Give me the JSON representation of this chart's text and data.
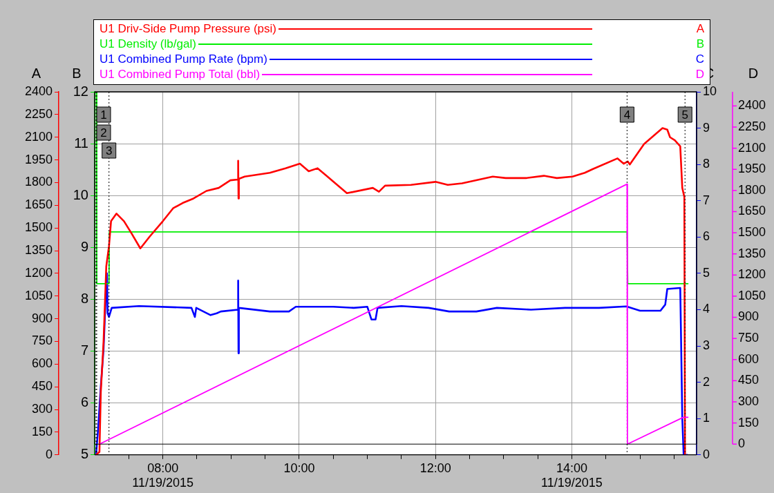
{
  "chart_data": [
    {
      "type": "line",
      "legend": "top",
      "grid": true,
      "xlim": [
        7.0,
        15.83
      ],
      "xticks": [
        {
          "value": 7.5,
          "label": null
        },
        {
          "value": 8,
          "label": "08:00\n11/19/2015"
        },
        {
          "value": 8.5,
          "label": null
        },
        {
          "value": 9,
          "label": null
        },
        {
          "value": 9.5,
          "label": null
        },
        {
          "value": 10,
          "label": "10:00"
        },
        {
          "value": 10.5,
          "label": null
        },
        {
          "value": 11,
          "label": null
        },
        {
          "value": 11.5,
          "label": null
        },
        {
          "value": 12,
          "label": "12:00"
        },
        {
          "value": 12.5,
          "label": null
        },
        {
          "value": 13,
          "label": null
        },
        {
          "value": 13.5,
          "label": null
        },
        {
          "value": 14,
          "label": "14:00\n11/19/2015"
        },
        {
          "value": 14.5,
          "label": null
        },
        {
          "value": 15,
          "label": null
        },
        {
          "value": 15.5,
          "label": null
        }
      ],
      "ylabel": "A",
      "ylim": [
        0,
        2400
      ],
      "yticks": [
        0,
        150,
        300,
        450,
        600,
        750,
        900,
        1050,
        1200,
        1350,
        1500,
        1650,
        1800,
        1950,
        2100,
        2250,
        2400
      ],
      "y2label": "B",
      "y2lim": [
        5,
        12
      ],
      "y2ticks": [
        5,
        6,
        7,
        8,
        9,
        10,
        11,
        12
      ],
      "y3label": "C",
      "y3lim": [
        0,
        10
      ],
      "y3ticks": [
        0,
        1,
        2,
        3,
        4,
        5,
        6,
        7,
        8,
        9,
        10
      ],
      "ref_lines": [
        {
          "axis": "x",
          "value": 7.02,
          "color": "#000000",
          "line_style": "dotted"
        },
        {
          "axis": "x",
          "value": 7.03,
          "color": "#000000",
          "line_style": "dotted"
        },
        {
          "axis": "x",
          "value": 7.21,
          "color": "#000000",
          "line_style": "dotted"
        },
        {
          "axis": "x",
          "value": 14.81,
          "color": "#000000",
          "line_style": "dotted"
        },
        {
          "axis": "x",
          "value": 15.66,
          "color": "#000000",
          "line_style": "dotted"
        }
      ],
      "annotations": [
        {
          "text": "1",
          "x": 7.02
        },
        {
          "text": "2",
          "x": 7.03
        },
        {
          "text": "3",
          "x": 7.21
        },
        {
          "text": "4",
          "x": 14.81
        },
        {
          "text": "5",
          "x": 15.66
        }
      ],
      "series": [
        {
          "name": "U1 Driv-Side Pump Pressure (psi)",
          "color": "#ff0000",
          "x": [
            7.02,
            7.07,
            7.09,
            7.13,
            7.17,
            7.21,
            7.24,
            7.32,
            7.43,
            7.54,
            7.67,
            7.81,
            8.0,
            8.15,
            8.29,
            8.45,
            8.64,
            8.82,
            8.99,
            9.1,
            9.105,
            9.11,
            9.115,
            9.2,
            9.57,
            9.8,
            10.01,
            10.14,
            10.27,
            10.48,
            10.7,
            11.08,
            11.17,
            11.26,
            11.64,
            12.0,
            12.18,
            12.39,
            12.84,
            13.03,
            13.33,
            13.59,
            13.78,
            14.01,
            14.19,
            14.31,
            14.67,
            14.76,
            14.82,
            14.85,
            15.06,
            15.33,
            15.4,
            15.44,
            15.51,
            15.59,
            15.62,
            15.65,
            15.66
          ],
          "values": [
            0,
            20,
            415,
            745,
            1245,
            1380,
            1545,
            1595,
            1545,
            1465,
            1365,
            1445,
            1545,
            1630,
            1665,
            1695,
            1745,
            1765,
            1815,
            1820,
            1945,
            1695,
            1825,
            1840,
            1865,
            1895,
            1925,
            1875,
            1895,
            1815,
            1730,
            1765,
            1740,
            1780,
            1785,
            1805,
            1785,
            1795,
            1840,
            1830,
            1830,
            1845,
            1830,
            1840,
            1865,
            1890,
            1960,
            1925,
            1940,
            1920,
            2055,
            2160,
            2150,
            2100,
            2080,
            2040,
            1765,
            1705,
            0
          ]
        },
        {
          "name": "U1 Density (lb/gal)",
          "color": "#00ee00",
          "axis": "y2",
          "x": [
            7.025,
            7.03,
            7.21,
            7.215,
            14.81,
            14.82,
            15.71
          ],
          "values": [
            12,
            8.3,
            8.3,
            9.3,
            9.3,
            8.3,
            8.3
          ]
        },
        {
          "name": "U1 Combined Pump Rate (bpm)",
          "color": "#0000ff",
          "axis": "y3",
          "x": [
            7.02,
            7.05,
            7.09,
            7.13,
            7.15,
            7.18,
            7.19,
            7.21,
            7.25,
            7.65,
            8.42,
            8.47,
            8.49,
            8.7,
            8.79,
            8.85,
            9.1,
            9.105,
            9.11,
            9.115,
            9.57,
            9.85,
            9.95,
            10.5,
            10.8,
            11.0,
            11.06,
            11.12,
            11.15,
            11.5,
            11.9,
            12.2,
            12.6,
            12.9,
            13.4,
            13.9,
            14.4,
            14.8,
            15.0,
            15.3,
            15.37,
            15.4,
            15.59,
            15.6,
            15.62,
            15.64,
            15.7
          ],
          "values": [
            0,
            0.7,
            1.9,
            2.9,
            3.8,
            5.0,
            3.9,
            3.8,
            4.05,
            4.1,
            4.05,
            3.8,
            4.05,
            3.85,
            3.9,
            3.95,
            4.0,
            4.8,
            2.8,
            4.05,
            3.95,
            3.95,
            4.08,
            4.08,
            4.05,
            4.08,
            3.73,
            3.73,
            4.05,
            4.1,
            4.05,
            3.95,
            3.95,
            4.05,
            4.0,
            4.05,
            4.05,
            4.09,
            3.97,
            3.97,
            4.14,
            4.57,
            4.6,
            3.46,
            1.0,
            0,
            0
          ]
        }
      ]
    },
    {
      "type": "line",
      "legend": "top",
      "tick_labels": "y",
      "xlim": [
        7.0,
        15.83
      ],
      "ylabel": "D",
      "ylim": [
        0,
        2500
      ],
      "yticks": [
        0,
        150,
        300,
        450,
        600,
        750,
        900,
        1050,
        1200,
        1350,
        1500,
        1650,
        1800,
        1950,
        2100,
        2250,
        2400
      ],
      "series": [
        {
          "name": "U1 Combined Pump Total (bbl)",
          "color": "#ff00ff",
          "x": [
            7.07,
            14.81,
            14.815,
            15.635,
            15.71
          ],
          "values": [
            0,
            1845,
            0,
            190,
            190
          ]
        }
      ]
    }
  ]
}
